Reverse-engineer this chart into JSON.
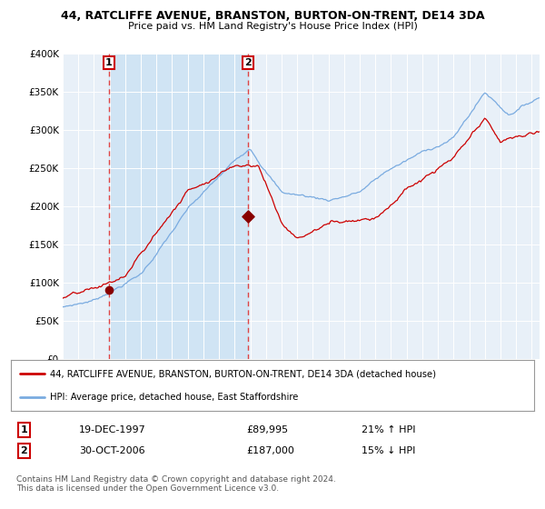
{
  "title": "44, RATCLIFFE AVENUE, BRANSTON, BURTON-ON-TRENT, DE14 3DA",
  "subtitle": "Price paid vs. HM Land Registry's House Price Index (HPI)",
  "legend_line1": "44, RATCLIFFE AVENUE, BRANSTON, BURTON-ON-TRENT, DE14 3DA (detached house)",
  "legend_line2": "HPI: Average price, detached house, East Staffordshire",
  "transaction1_label": "1",
  "transaction1_date": "19-DEC-1997",
  "transaction1_price": "£89,995",
  "transaction1_hpi": "21% ↑ HPI",
  "transaction2_label": "2",
  "transaction2_date": "30-OCT-2006",
  "transaction2_price": "£187,000",
  "transaction2_hpi": "15% ↓ HPI",
  "footnote": "Contains HM Land Registry data © Crown copyright and database right 2024.\nThis data is licensed under the Open Government Licence v3.0.",
  "red_color": "#cc0000",
  "blue_color": "#7aabe0",
  "marker_color": "#880000",
  "dashed_color": "#dd4444",
  "background_plot": "#e8f0f8",
  "shade_color": "#d0e4f4",
  "background_fig": "#ffffff",
  "ylim": [
    0,
    400000
  ],
  "yticks": [
    0,
    50000,
    100000,
    150000,
    200000,
    250000,
    300000,
    350000,
    400000
  ],
  "x_start_year": 1995,
  "x_end_year": 2025,
  "transaction1_year": 1997.96,
  "transaction1_value": 89995,
  "transaction2_year": 2006.83,
  "transaction2_value": 187000
}
